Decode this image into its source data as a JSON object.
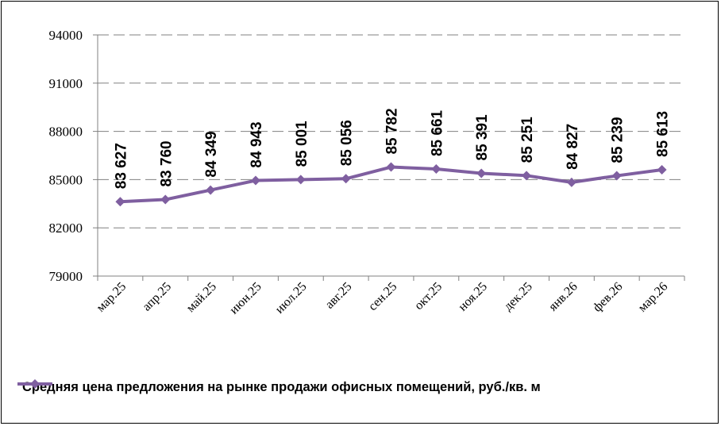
{
  "chart_data": {
    "type": "line",
    "categories": [
      "мар.25",
      "апр.25",
      "май.25",
      "июн.25",
      "июл.25",
      "авг.25",
      "сен.25",
      "окт.25",
      "ноя.25",
      "дек.25",
      "янв.26",
      "фев.26",
      "мар.26"
    ],
    "series": [
      {
        "name": "Средняя цена предложения на рынке продажи офисных помещений,  руб./кв. м",
        "values": [
          83627,
          83760,
          84349,
          84943,
          85001,
          85056,
          85782,
          85661,
          85391,
          85251,
          84827,
          85239,
          85613
        ],
        "data_labels": [
          "83 627",
          "83 760",
          "84 349",
          "84 943",
          "85 001",
          "85 056",
          "85 782",
          "85 661",
          "85 391",
          "85 251",
          "84 827",
          "85 239",
          "85 613"
        ],
        "color": "#7F5FA0"
      }
    ],
    "ylim": [
      79000,
      94000
    ],
    "yticks": [
      79000,
      82000,
      85000,
      88000,
      91000,
      94000
    ],
    "ytick_labels": [
      "79000",
      "82000",
      "85000",
      "88000",
      "91000",
      "94000"
    ],
    "grid": true,
    "grid_style": "dashed",
    "legend_position": "bottom-left",
    "title": "",
    "xlabel": "",
    "ylabel": ""
  }
}
